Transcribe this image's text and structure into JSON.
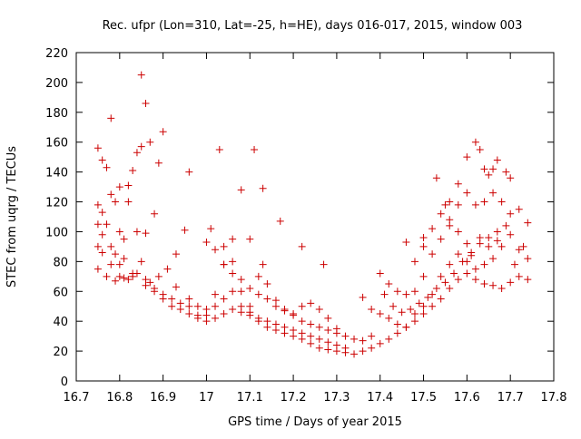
{
  "chart_data": {
    "type": "scatter",
    "title": "Rec. ufpr (Lon=310, Lat=-25, h=HE), days 016-017, 2015, window 003",
    "xlabel": "GPS time / Days of year 2015",
    "ylabel": "STEC from uqrg / TECUs",
    "xlim": [
      16.7,
      17.8
    ],
    "ylim": [
      0,
      220
    ],
    "xticks": [
      "16.7",
      "16.8",
      "16.9",
      "17",
      "17.1",
      "17.2",
      "17.3",
      "17.4",
      "17.5",
      "17.6",
      "17.7",
      "17.8"
    ],
    "yticks": [
      "0",
      "20",
      "40",
      "60",
      "80",
      "100",
      "120",
      "140",
      "160",
      "180",
      "200",
      "220"
    ],
    "grid": false,
    "legend": "none",
    "marker": "+",
    "color": "#cc0000",
    "points": [
      [
        16.75,
        156
      ],
      [
        16.76,
        148
      ],
      [
        16.77,
        143
      ],
      [
        16.78,
        176
      ],
      [
        16.8,
        130
      ],
      [
        16.82,
        131
      ],
      [
        16.84,
        153
      ],
      [
        16.85,
        205
      ],
      [
        16.86,
        186
      ],
      [
        16.87,
        160
      ],
      [
        16.89,
        146
      ],
      [
        16.9,
        167
      ],
      [
        16.96,
        140
      ],
      [
        17.01,
        102
      ],
      [
        17.03,
        155
      ],
      [
        17.11,
        155
      ],
      [
        17.13,
        129
      ],
      [
        17.08,
        128
      ],
      [
        16.75,
        118
      ],
      [
        16.76,
        113
      ],
      [
        16.77,
        105
      ],
      [
        16.78,
        125
      ],
      [
        16.79,
        120
      ],
      [
        16.8,
        100
      ],
      [
        16.81,
        95
      ],
      [
        16.82,
        120
      ],
      [
        16.83,
        141
      ],
      [
        16.84,
        100
      ],
      [
        16.85,
        157
      ],
      [
        16.86,
        99
      ],
      [
        16.88,
        112
      ],
      [
        16.93,
        85
      ],
      [
        16.95,
        101
      ],
      [
        17.04,
        90
      ],
      [
        17.06,
        95
      ],
      [
        17.1,
        95
      ],
      [
        17.13,
        78
      ],
      [
        17.17,
        107
      ],
      [
        17.22,
        90
      ],
      [
        17.27,
        78
      ],
      [
        16.75,
        105
      ],
      [
        16.76,
        98
      ],
      [
        16.78,
        90
      ],
      [
        16.79,
        85
      ],
      [
        16.8,
        78
      ],
      [
        16.81,
        82
      ],
      [
        16.83,
        72
      ],
      [
        16.85,
        80
      ],
      [
        16.87,
        66
      ],
      [
        16.89,
        70
      ],
      [
        16.91,
        75
      ],
      [
        16.93,
        63
      ],
      [
        16.96,
        55
      ],
      [
        16.98,
        50
      ],
      [
        17.0,
        48
      ],
      [
        17.02,
        58
      ],
      [
        17.04,
        78
      ],
      [
        17.06,
        80
      ],
      [
        17.08,
        60
      ],
      [
        17.1,
        50
      ],
      [
        17.12,
        70
      ],
      [
        17.14,
        65
      ],
      [
        17.16,
        54
      ],
      [
        17.18,
        48
      ],
      [
        17.2,
        45
      ],
      [
        17.22,
        50
      ],
      [
        17.24,
        52
      ],
      [
        17.26,
        48
      ],
      [
        17.28,
        42
      ],
      [
        17.3,
        35
      ],
      [
        16.75,
        90
      ],
      [
        16.76,
        86
      ],
      [
        16.78,
        78
      ],
      [
        16.8,
        70
      ],
      [
        16.82,
        68
      ],
      [
        16.84,
        72
      ],
      [
        16.86,
        64
      ],
      [
        16.88,
        60
      ],
      [
        16.9,
        55
      ],
      [
        16.92,
        50
      ],
      [
        16.94,
        48
      ],
      [
        16.96,
        45
      ],
      [
        16.98,
        42
      ],
      [
        17.0,
        44
      ],
      [
        17.02,
        50
      ],
      [
        17.04,
        55
      ],
      [
        17.06,
        60
      ],
      [
        17.08,
        50
      ],
      [
        17.1,
        46
      ],
      [
        17.12,
        42
      ],
      [
        17.14,
        40
      ],
      [
        17.16,
        38
      ],
      [
        17.18,
        36
      ],
      [
        17.2,
        34
      ],
      [
        17.22,
        32
      ],
      [
        17.24,
        30
      ],
      [
        17.26,
        28
      ],
      [
        17.28,
        26
      ],
      [
        17.3,
        24
      ],
      [
        17.32,
        22
      ],
      [
        16.75,
        75
      ],
      [
        16.77,
        70
      ],
      [
        16.79,
        67
      ],
      [
        16.81,
        69
      ],
      [
        16.83,
        70
      ],
      [
        16.86,
        68
      ],
      [
        16.88,
        62
      ],
      [
        16.9,
        58
      ],
      [
        16.92,
        55
      ],
      [
        16.94,
        52
      ],
      [
        16.96,
        50
      ],
      [
        16.98,
        44
      ],
      [
        17.0,
        40
      ],
      [
        17.02,
        42
      ],
      [
        17.04,
        45
      ],
      [
        17.06,
        48
      ],
      [
        17.08,
        46
      ],
      [
        17.1,
        44
      ],
      [
        17.12,
        40
      ],
      [
        17.14,
        36
      ],
      [
        17.16,
        34
      ],
      [
        17.18,
        32
      ],
      [
        17.2,
        30
      ],
      [
        17.22,
        28
      ],
      [
        17.24,
        25
      ],
      [
        17.26,
        22
      ],
      [
        17.28,
        21
      ],
      [
        17.3,
        20
      ],
      [
        17.32,
        19
      ],
      [
        17.34,
        18
      ],
      [
        17.0,
        93
      ],
      [
        17.02,
        88
      ],
      [
        17.04,
        78
      ],
      [
        17.06,
        72
      ],
      [
        17.08,
        68
      ],
      [
        17.1,
        62
      ],
      [
        17.12,
        58
      ],
      [
        17.14,
        55
      ],
      [
        17.16,
        50
      ],
      [
        17.18,
        47
      ],
      [
        17.2,
        44
      ],
      [
        17.22,
        40
      ],
      [
        17.24,
        38
      ],
      [
        17.26,
        36
      ],
      [
        17.28,
        34
      ],
      [
        17.3,
        32
      ],
      [
        17.32,
        30
      ],
      [
        17.34,
        28
      ],
      [
        17.36,
        27
      ],
      [
        17.38,
        30
      ],
      [
        17.36,
        56
      ],
      [
        17.38,
        48
      ],
      [
        17.4,
        45
      ],
      [
        17.42,
        42
      ],
      [
        17.44,
        38
      ],
      [
        17.46,
        36
      ],
      [
        17.48,
        40
      ],
      [
        17.5,
        45
      ],
      [
        17.52,
        50
      ],
      [
        17.54,
        55
      ],
      [
        17.56,
        62
      ],
      [
        17.58,
        68
      ],
      [
        17.6,
        72
      ],
      [
        17.62,
        68
      ],
      [
        17.64,
        65
      ],
      [
        17.66,
        64
      ],
      [
        17.68,
        62
      ],
      [
        17.7,
        66
      ],
      [
        17.72,
        70
      ],
      [
        17.74,
        68
      ],
      [
        17.36,
        20
      ],
      [
        17.38,
        22
      ],
      [
        17.4,
        25
      ],
      [
        17.42,
        28
      ],
      [
        17.44,
        32
      ],
      [
        17.46,
        36
      ],
      [
        17.48,
        45
      ],
      [
        17.5,
        50
      ],
      [
        17.52,
        58
      ],
      [
        17.54,
        70
      ],
      [
        17.56,
        78
      ],
      [
        17.58,
        85
      ],
      [
        17.6,
        80
      ],
      [
        17.62,
        75
      ],
      [
        17.64,
        78
      ],
      [
        17.66,
        82
      ],
      [
        17.68,
        90
      ],
      [
        17.7,
        98
      ],
      [
        17.72,
        88
      ],
      [
        17.74,
        82
      ],
      [
        17.4,
        72
      ],
      [
        17.42,
        65
      ],
      [
        17.44,
        60
      ],
      [
        17.46,
        58
      ],
      [
        17.48,
        60
      ],
      [
        17.5,
        70
      ],
      [
        17.52,
        85
      ],
      [
        17.54,
        95
      ],
      [
        17.56,
        108
      ],
      [
        17.58,
        118
      ],
      [
        17.6,
        126
      ],
      [
        17.62,
        118
      ],
      [
        17.64,
        120
      ],
      [
        17.66,
        126
      ],
      [
        17.68,
        120
      ],
      [
        17.7,
        112
      ],
      [
        17.72,
        115
      ],
      [
        17.74,
        106
      ],
      [
        17.48,
        80
      ],
      [
        17.5,
        90
      ],
      [
        17.52,
        102
      ],
      [
        17.54,
        112
      ],
      [
        17.56,
        120
      ],
      [
        17.58,
        132
      ],
      [
        17.6,
        150
      ],
      [
        17.62,
        160
      ],
      [
        17.63,
        155
      ],
      [
        17.64,
        142
      ],
      [
        17.65,
        138
      ],
      [
        17.66,
        142
      ],
      [
        17.67,
        148
      ],
      [
        17.69,
        140
      ],
      [
        17.7,
        136
      ],
      [
        17.46,
        93
      ],
      [
        17.5,
        96
      ],
      [
        17.53,
        136
      ],
      [
        17.55,
        118
      ],
      [
        17.56,
        104
      ],
      [
        17.58,
        100
      ],
      [
        17.6,
        92
      ],
      [
        17.61,
        86
      ],
      [
        17.63,
        96
      ],
      [
        17.65,
        90
      ],
      [
        17.67,
        100
      ],
      [
        17.69,
        104
      ],
      [
        17.73,
        90
      ],
      [
        17.41,
        58
      ],
      [
        17.43,
        50
      ],
      [
        17.45,
        46
      ],
      [
        17.47,
        48
      ],
      [
        17.49,
        52
      ],
      [
        17.51,
        56
      ],
      [
        17.53,
        62
      ],
      [
        17.55,
        66
      ],
      [
        17.57,
        72
      ],
      [
        17.59,
        80
      ],
      [
        17.61,
        84
      ],
      [
        17.63,
        92
      ],
      [
        17.65,
        96
      ],
      [
        17.67,
        94
      ],
      [
        17.71,
        78
      ]
    ]
  }
}
